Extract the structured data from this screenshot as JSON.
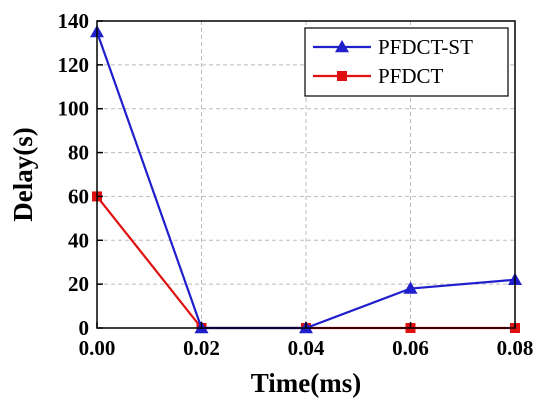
{
  "chart_data": {
    "type": "line",
    "title": "",
    "xlabel": "Time(ms)",
    "ylabel": "Delay(s)",
    "xlim": [
      0,
      0.08
    ],
    "ylim": [
      0,
      140
    ],
    "x_ticks": [
      "0.00",
      "0.02",
      "0.04",
      "0.06",
      "0.08"
    ],
    "x_tick_values": [
      0,
      0.02,
      0.04,
      0.06,
      0.08
    ],
    "y_ticks": [
      "0",
      "20",
      "40",
      "60",
      "80",
      "100",
      "120",
      "140"
    ],
    "y_tick_values": [
      0,
      20,
      40,
      60,
      80,
      100,
      120,
      140
    ],
    "grid": true,
    "legend_position": "top-right",
    "x": [
      0,
      0.02,
      0.04,
      0.06,
      0.08
    ],
    "series": [
      {
        "name": "PFDCT-ST",
        "color": "#1f1fcc",
        "marker": "triangle",
        "values": [
          135,
          0,
          0,
          18,
          22
        ]
      },
      {
        "name": "PFDCT",
        "color": "#e01010",
        "marker": "square",
        "values": [
          60,
          0,
          0,
          0,
          0
        ]
      }
    ]
  }
}
